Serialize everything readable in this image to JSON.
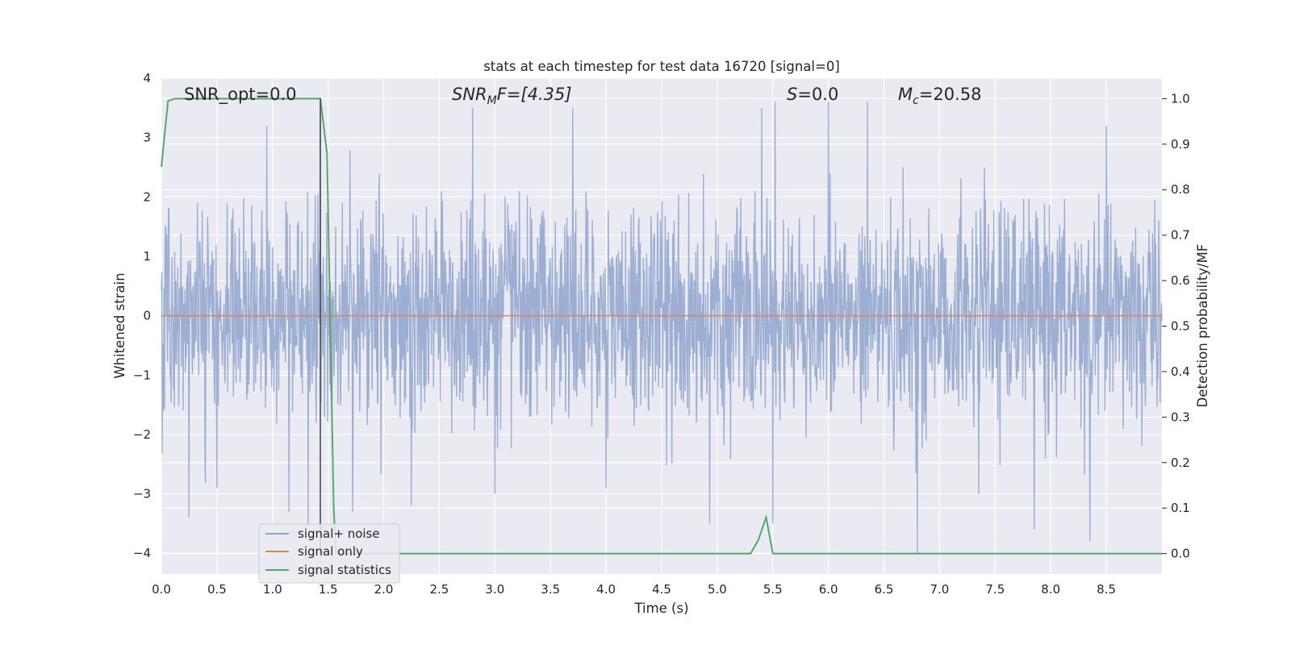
{
  "chart_data": {
    "type": "line",
    "title": "stats at each timestep for test data 16720 [signal=0]",
    "xlabel": "Time (s)",
    "ylabel_left": "Whitened strain",
    "ylabel_right": "Detection probability/MF",
    "xlim": [
      0.0,
      9.0
    ],
    "ylim_left": [
      -4.35,
      4.0
    ],
    "ylim_right": [
      -0.045,
      1.045
    ],
    "x_ticks": [
      "0.0",
      "0.5",
      "1.0",
      "1.5",
      "2.0",
      "2.5",
      "3.0",
      "3.5",
      "4.0",
      "4.5",
      "5.0",
      "5.5",
      "6.0",
      "6.5",
      "7.0",
      "7.5",
      "8.0",
      "8.5"
    ],
    "y_left_ticks": [
      "4",
      "3",
      "2",
      "1",
      "0",
      "−1",
      "−2",
      "−3",
      "−4"
    ],
    "y_right_ticks": [
      "1.0",
      "0.9",
      "0.8",
      "0.7",
      "0.6",
      "0.5",
      "0.4",
      "0.3",
      "0.2",
      "0.1",
      "0.0"
    ],
    "grid": true,
    "legend_position": "lower-left",
    "annotations": {
      "snr_opt": "SNR_opt=0.0",
      "snr_mf_main": "SNR",
      "snr_mf_sub": "M",
      "snr_mf_rest": "F=[4.35]",
      "s_main": "S",
      "s_rest": "=0.0",
      "mc_main": "M",
      "mc_sub": "c",
      "mc_rest": "=20.58"
    },
    "vline_time": 1.43,
    "noise_series": {
      "name": "signal+ noise",
      "color": "#8ea3cc",
      "dt": 0.004,
      "typical_envelope": [
        -1.6,
        2.1
      ],
      "peaks": [
        {
          "x": 0.25,
          "y": -3.4
        },
        {
          "x": 0.5,
          "y": 2.9
        },
        {
          "x": 0.5,
          "y": -2.9
        },
        {
          "x": 0.95,
          "y": 3.2
        },
        {
          "x": 1.15,
          "y": -3.3
        },
        {
          "x": 1.32,
          "y": -3.5
        },
        {
          "x": 1.43,
          "y": 3.4
        },
        {
          "x": 1.72,
          "y": -3.3
        },
        {
          "x": 2.25,
          "y": -3.2
        },
        {
          "x": 2.8,
          "y": 3.5
        },
        {
          "x": 3.0,
          "y": -3.0
        },
        {
          "x": 3.7,
          "y": 3.5
        },
        {
          "x": 4.0,
          "y": -2.9
        },
        {
          "x": 4.93,
          "y": -3.5
        },
        {
          "x": 5.4,
          "y": 3.5
        },
        {
          "x": 5.5,
          "y": -3.5
        },
        {
          "x": 5.52,
          "y": 3.6
        },
        {
          "x": 6.0,
          "y": 3.6
        },
        {
          "x": 6.35,
          "y": 3.6
        },
        {
          "x": 6.8,
          "y": -4.0
        },
        {
          "x": 7.35,
          "y": -3.0
        },
        {
          "x": 7.85,
          "y": -3.6
        },
        {
          "x": 8.35,
          "y": -3.8
        },
        {
          "x": 8.5,
          "y": 3.2
        }
      ]
    },
    "signal_only": {
      "name": "signal only",
      "color": "#dd8452",
      "value": 0.0
    },
    "signal_statistics": {
      "name": "signal statistics",
      "color": "#55a868",
      "axis": "right",
      "x": [
        0.0,
        0.06,
        0.12,
        0.2,
        1.0,
        1.43,
        1.49,
        1.55,
        1.57,
        1.6,
        5.3,
        5.37,
        5.44,
        5.5,
        9.0
      ],
      "y": [
        0.85,
        0.995,
        1.0,
        1.0,
        1.0,
        1.0,
        0.88,
        0.1,
        0.0,
        0.0,
        0.0,
        0.03,
        0.08,
        0.0,
        0.0
      ]
    },
    "legend": [
      "signal+ noise",
      "signal only",
      "signal statistics"
    ]
  }
}
